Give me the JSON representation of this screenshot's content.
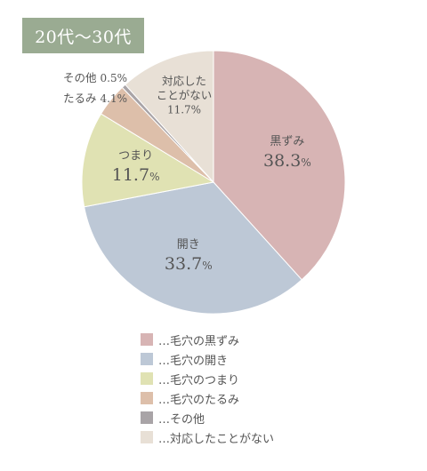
{
  "age_badge": "20代〜30代",
  "chart_data": {
    "type": "pie",
    "start_angle_deg": 0,
    "direction": "clockwise",
    "slices": [
      {
        "category": "黒ずみ",
        "legend": "…毛穴の黒ずみ",
        "value": 38.3,
        "value_label": "38.3%",
        "color": "#d7b4b4"
      },
      {
        "category": "開き",
        "legend": "…毛穴の開き",
        "value": 33.7,
        "value_label": "33.7%",
        "color": "#bdc8d6"
      },
      {
        "category": "つまり",
        "legend": "…毛穴のつまり",
        "value": 11.7,
        "value_label": "11.7%",
        "color": "#e0e2b3"
      },
      {
        "category": "たるみ",
        "legend": "…毛穴のたるみ",
        "value": 4.1,
        "value_label": "4.1%",
        "color": "#ddbfaa"
      },
      {
        "category": "その他",
        "legend": "…その他",
        "value": 0.5,
        "value_label": "0.5%",
        "color": "#a9a4a7"
      },
      {
        "category": "対応したことがない",
        "category_lines": [
          "対応した",
          "ことがない"
        ],
        "legend": "…対応したことがない",
        "value": 11.7,
        "value_label": "11.7%",
        "color": "#e8e0d6"
      }
    ]
  }
}
